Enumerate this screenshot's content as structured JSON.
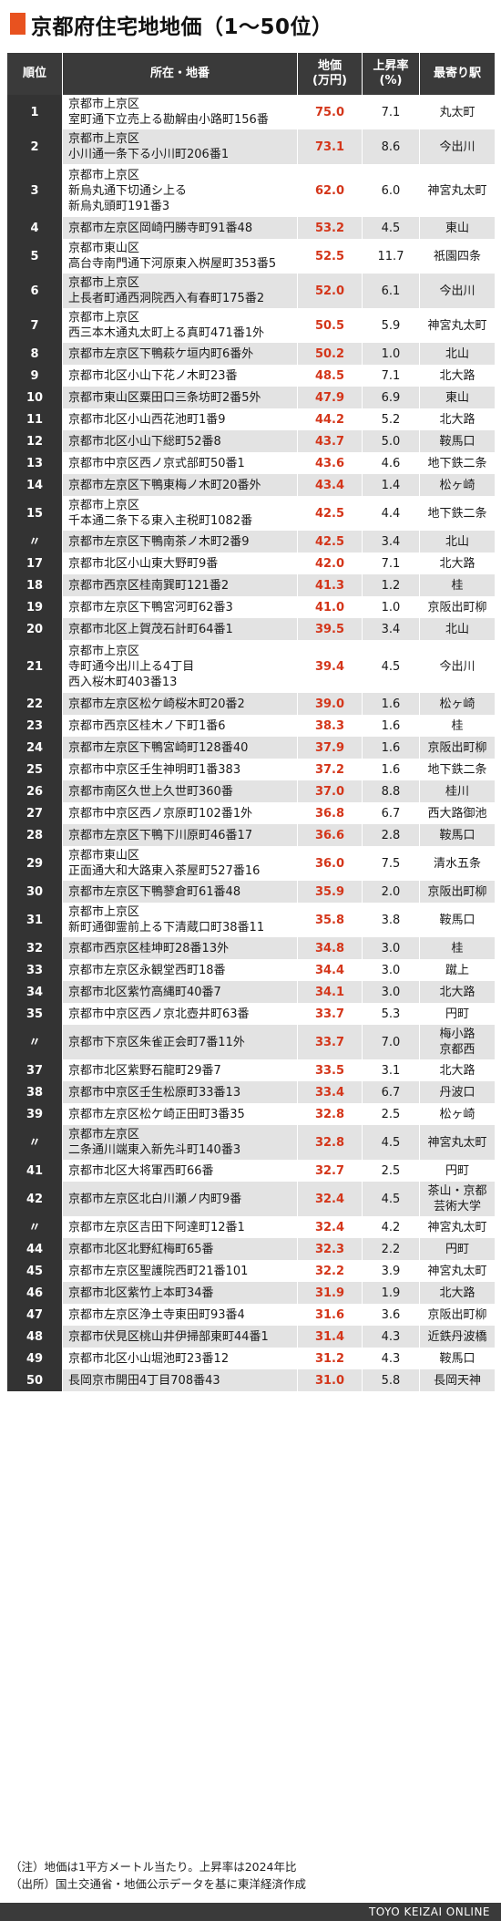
{
  "title": "京都府住宅地地価（1〜50位）",
  "headers": {
    "rank": "順位",
    "address": "所在・地番",
    "price_line1": "地価",
    "price_line2": "(万円)",
    "rate_line1": "上昇率",
    "rate_line2": "(%)",
    "station": "最寄り駅"
  },
  "rows": [
    {
      "rank": "1",
      "lines": [
        "京都市上京区",
        "室町通下立売上る勘解由小路町156番"
      ],
      "price": "75.0",
      "rate": "7.1",
      "station": [
        "丸太町"
      ]
    },
    {
      "rank": "2",
      "lines": [
        "京都市上京区",
        "小川通一条下る小川町206番1"
      ],
      "price": "73.1",
      "rate": "8.6",
      "station": [
        "今出川"
      ]
    },
    {
      "rank": "3",
      "lines": [
        "京都市上京区",
        "新烏丸通下切通シ上る",
        "新烏丸頭町191番3"
      ],
      "price": "62.0",
      "rate": "6.0",
      "station": [
        "神宮丸太町"
      ]
    },
    {
      "rank": "4",
      "lines": [
        "京都市左京区岡崎円勝寺町91番48"
      ],
      "price": "53.2",
      "rate": "4.5",
      "station": [
        "東山"
      ]
    },
    {
      "rank": "5",
      "lines": [
        "京都市東山区",
        "高台寺南門通下河原東入桝屋町353番5"
      ],
      "price": "52.5",
      "rate": "11.7",
      "station": [
        "祇園四条"
      ]
    },
    {
      "rank": "6",
      "lines": [
        "京都市上京区",
        "上長者町通西洞院西入有春町175番2"
      ],
      "price": "52.0",
      "rate": "6.1",
      "station": [
        "今出川"
      ]
    },
    {
      "rank": "7",
      "lines": [
        "京都市上京区",
        "西三本木通丸太町上る真町471番1外"
      ],
      "price": "50.5",
      "rate": "5.9",
      "station": [
        "神宮丸太町"
      ]
    },
    {
      "rank": "8",
      "lines": [
        "京都市左京区下鴨萩ケ垣内町6番外"
      ],
      "price": "50.2",
      "rate": "1.0",
      "station": [
        "北山"
      ]
    },
    {
      "rank": "9",
      "lines": [
        "京都市北区小山下花ノ木町23番"
      ],
      "price": "48.5",
      "rate": "7.1",
      "station": [
        "北大路"
      ]
    },
    {
      "rank": "10",
      "lines": [
        "京都市東山区粟田口三条坊町2番5外"
      ],
      "price": "47.9",
      "rate": "6.9",
      "station": [
        "東山"
      ]
    },
    {
      "rank": "11",
      "lines": [
        "京都市北区小山西花池町1番9"
      ],
      "price": "44.2",
      "rate": "5.2",
      "station": [
        "北大路"
      ]
    },
    {
      "rank": "12",
      "lines": [
        "京都市北区小山下総町52番8"
      ],
      "price": "43.7",
      "rate": "5.0",
      "station": [
        "鞍馬口"
      ]
    },
    {
      "rank": "13",
      "lines": [
        "京都市中京区西ノ京式部町50番1"
      ],
      "price": "43.6",
      "rate": "4.6",
      "station": [
        "地下鉄二条"
      ]
    },
    {
      "rank": "14",
      "lines": [
        "京都市左京区下鴨東梅ノ木町20番外"
      ],
      "price": "43.4",
      "rate": "1.4",
      "station": [
        "松ヶ崎"
      ]
    },
    {
      "rank": "15",
      "lines": [
        "京都市上京区",
        "千本通二条下る東入主税町1082番"
      ],
      "price": "42.5",
      "rate": "4.4",
      "station": [
        "地下鉄二条"
      ]
    },
    {
      "rank": "〃",
      "lines": [
        "京都市左京区下鴨南茶ノ木町2番9"
      ],
      "price": "42.5",
      "rate": "3.4",
      "station": [
        "北山"
      ]
    },
    {
      "rank": "17",
      "lines": [
        "京都市北区小山東大野町9番"
      ],
      "price": "42.0",
      "rate": "7.1",
      "station": [
        "北大路"
      ]
    },
    {
      "rank": "18",
      "lines": [
        "京都市西京区桂南巽町121番2"
      ],
      "price": "41.3",
      "rate": "1.2",
      "station": [
        "桂"
      ]
    },
    {
      "rank": "19",
      "lines": [
        "京都市左京区下鴨宮河町62番3"
      ],
      "price": "41.0",
      "rate": "1.0",
      "station": [
        "京阪出町柳"
      ]
    },
    {
      "rank": "20",
      "lines": [
        "京都市北区上賀茂石計町64番1"
      ],
      "price": "39.5",
      "rate": "3.4",
      "station": [
        "北山"
      ]
    },
    {
      "rank": "21",
      "lines": [
        "京都市上京区",
        "寺町通今出川上る4丁目",
        "西入桜木町403番13"
      ],
      "price": "39.4",
      "rate": "4.5",
      "station": [
        "今出川"
      ]
    },
    {
      "rank": "22",
      "lines": [
        "京都市左京区松ケ崎桜木町20番2"
      ],
      "price": "39.0",
      "rate": "1.6",
      "station": [
        "松ヶ崎"
      ]
    },
    {
      "rank": "23",
      "lines": [
        "京都市西京区桂木ノ下町1番6"
      ],
      "price": "38.3",
      "rate": "1.6",
      "station": [
        "桂"
      ]
    },
    {
      "rank": "24",
      "lines": [
        "京都市左京区下鴨宮崎町128番40"
      ],
      "price": "37.9",
      "rate": "1.6",
      "station": [
        "京阪出町柳"
      ]
    },
    {
      "rank": "25",
      "lines": [
        "京都市中京区壬生神明町1番383"
      ],
      "price": "37.2",
      "rate": "1.6",
      "station": [
        "地下鉄二条"
      ]
    },
    {
      "rank": "26",
      "lines": [
        "京都市南区久世上久世町360番"
      ],
      "price": "37.0",
      "rate": "8.8",
      "station": [
        "桂川"
      ]
    },
    {
      "rank": "27",
      "lines": [
        "京都市中京区西ノ京原町102番1外"
      ],
      "price": "36.8",
      "rate": "6.7",
      "station": [
        "西大路御池"
      ]
    },
    {
      "rank": "28",
      "lines": [
        "京都市左京区下鴨下川原町46番17"
      ],
      "price": "36.6",
      "rate": "2.8",
      "station": [
        "鞍馬口"
      ]
    },
    {
      "rank": "29",
      "lines": [
        "京都市東山区",
        "正面通大和大路東入茶屋町527番16"
      ],
      "price": "36.0",
      "rate": "7.5",
      "station": [
        "清水五条"
      ]
    },
    {
      "rank": "30",
      "lines": [
        "京都市左京区下鴨蓼倉町61番48"
      ],
      "price": "35.9",
      "rate": "2.0",
      "station": [
        "京阪出町柳"
      ]
    },
    {
      "rank": "31",
      "lines": [
        "京都市上京区",
        "新町通御霊前上る下清蔵口町38番11"
      ],
      "price": "35.8",
      "rate": "3.8",
      "station": [
        "鞍馬口"
      ]
    },
    {
      "rank": "32",
      "lines": [
        "京都市西京区桂坤町28番13外"
      ],
      "price": "34.8",
      "rate": "3.0",
      "station": [
        "桂"
      ]
    },
    {
      "rank": "33",
      "lines": [
        "京都市左京区永観堂西町18番"
      ],
      "price": "34.4",
      "rate": "3.0",
      "station": [
        "蹴上"
      ]
    },
    {
      "rank": "34",
      "lines": [
        "京都市北区紫竹高縄町40番7"
      ],
      "price": "34.1",
      "rate": "3.0",
      "station": [
        "北大路"
      ]
    },
    {
      "rank": "35",
      "lines": [
        "京都市中京区西ノ京北壺井町63番"
      ],
      "price": "33.7",
      "rate": "5.3",
      "station": [
        "円町"
      ]
    },
    {
      "rank": "〃",
      "lines": [
        "京都市下京区朱雀正会町7番11外"
      ],
      "price": "33.7",
      "rate": "7.0",
      "station": [
        "梅小路",
        "京都西"
      ]
    },
    {
      "rank": "37",
      "lines": [
        "京都市北区紫野石龍町29番7"
      ],
      "price": "33.5",
      "rate": "3.1",
      "station": [
        "北大路"
      ]
    },
    {
      "rank": "38",
      "lines": [
        "京都市中京区壬生松原町33番13"
      ],
      "price": "33.4",
      "rate": "6.7",
      "station": [
        "丹波口"
      ]
    },
    {
      "rank": "39",
      "lines": [
        "京都市左京区松ケ崎正田町3番35"
      ],
      "price": "32.8",
      "rate": "2.5",
      "station": [
        "松ヶ崎"
      ]
    },
    {
      "rank": "〃",
      "lines": [
        "京都市左京区",
        "二条通川端東入新先斗町140番3"
      ],
      "price": "32.8",
      "rate": "4.5",
      "station": [
        "神宮丸太町"
      ]
    },
    {
      "rank": "41",
      "lines": [
        "京都市北区大将軍西町66番"
      ],
      "price": "32.7",
      "rate": "2.5",
      "station": [
        "円町"
      ]
    },
    {
      "rank": "42",
      "lines": [
        "京都市左京区北白川瀬ノ内町9番"
      ],
      "price": "32.4",
      "rate": "4.5",
      "station": [
        "茶山・京都",
        "芸術大学"
      ]
    },
    {
      "rank": "〃",
      "lines": [
        "京都市左京区吉田下阿達町12番1"
      ],
      "price": "32.4",
      "rate": "4.2",
      "station": [
        "神宮丸太町"
      ]
    },
    {
      "rank": "44",
      "lines": [
        "京都市北区北野紅梅町65番"
      ],
      "price": "32.3",
      "rate": "2.2",
      "station": [
        "円町"
      ]
    },
    {
      "rank": "45",
      "lines": [
        "京都市左京区聖護院西町21番101"
      ],
      "price": "32.2",
      "rate": "3.9",
      "station": [
        "神宮丸太町"
      ]
    },
    {
      "rank": "46",
      "lines": [
        "京都市北区紫竹上本町34番"
      ],
      "price": "31.9",
      "rate": "1.9",
      "station": [
        "北大路"
      ]
    },
    {
      "rank": "47",
      "lines": [
        "京都市左京区浄土寺東田町93番4"
      ],
      "price": "31.6",
      "rate": "3.6",
      "station": [
        "京阪出町柳"
      ]
    },
    {
      "rank": "48",
      "lines": [
        "京都市伏見区桃山井伊掃部東町44番1"
      ],
      "price": "31.4",
      "rate": "4.3",
      "station": [
        "近鉄丹波橋"
      ]
    },
    {
      "rank": "49",
      "lines": [
        "京都市北区小山堀池町23番12"
      ],
      "price": "31.2",
      "rate": "4.3",
      "station": [
        "鞍馬口"
      ]
    },
    {
      "rank": "50",
      "lines": [
        "長岡京市開田4丁目708番43"
      ],
      "price": "31.0",
      "rate": "5.8",
      "station": [
        "長岡天神"
      ]
    }
  ],
  "notes": [
    "（注）地価は1平方メートル当たり。上昇率は2024年比",
    "（出所）国土交通省・地価公示データを基に東洋経済作成"
  ],
  "footer": "TOYO KEIZAI ONLINE",
  "colors": {
    "accent": "#e8521f",
    "price": "#d4361a",
    "header_bg": "#3a3a3a",
    "stripe": "#e3e3e3"
  }
}
